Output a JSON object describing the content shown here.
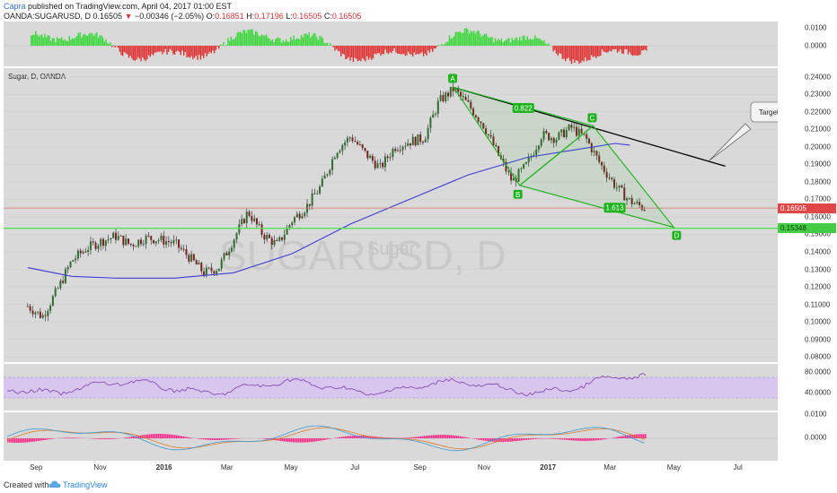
{
  "header": {
    "author": "Capra",
    "published_text": "published on TradingView.com, April 04, 2017 01:00 EST",
    "symbol": "OANDA:SUGARUSD, D",
    "last": "0.16505",
    "change_arrow": "▼",
    "change": "−0.00346 (−2.05%)",
    "open_label": "O:",
    "open": "0.16851",
    "high_label": "H:",
    "high": "0.17196",
    "low_label": "L:",
    "low": "0.16505",
    "close_label": "C:",
    "close": "0.16505"
  },
  "main_panel": {
    "label": "Sugar, D, OANDA",
    "watermark_symbol": "SUGARUSD, D",
    "watermark_name": "Sugar"
  },
  "footer": {
    "created_with": "Created with",
    "brand": "TradingView"
  },
  "colors": {
    "panel_bg": "#d9d9d9",
    "candle_up": "#2f6e2f",
    "candle_down": "#7a2020",
    "ma": "#3c3cd6",
    "pattern": "#19b319",
    "trendline": "#000000",
    "support": "#55e055",
    "rsi": "#7a3fb0",
    "rsi_band": "#d8c6ef",
    "macd_fast": "#3a9bd6",
    "macd_slow": "#e07a2a",
    "macd_hist": "#ff2a8a",
    "osc_pos": "#3ad83a",
    "osc_neg": "#e03030"
  },
  "chart_data": [
    {
      "type": "line",
      "panel": "oscillator",
      "y_ticks": [
        "0.0100",
        "0.0000"
      ],
      "series": []
    },
    {
      "type": "candlestick",
      "panel": "main",
      "x_ticks": [
        "Sep",
        "Nov",
        "2016",
        "Mar",
        "May",
        "Jul",
        "Sep",
        "Nov",
        "2017",
        "Mar",
        "May",
        "Jul"
      ],
      "y_ticks": [
        "0.24000",
        "0.23000",
        "0.22000",
        "0.21000",
        "0.20000",
        "0.19000",
        "0.18000",
        "0.17000",
        "0.16000",
        "0.15000",
        "0.14000",
        "0.13000",
        "0.12000",
        "0.11000",
        "0.10000",
        "0.09000",
        "0.08000"
      ],
      "ylim": [
        0.077,
        0.245
      ],
      "series": [
        {
          "values": [
            [
              "2015-08-24",
              0.109
            ],
            [
              "2015-09-07",
              0.103
            ],
            [
              "2015-09-21",
              0.118
            ],
            [
              "2015-10-05",
              0.135
            ],
            [
              "2015-10-19",
              0.142
            ],
            [
              "2015-11-02",
              0.146
            ],
            [
              "2015-11-16",
              0.149
            ],
            [
              "2015-11-30",
              0.144
            ],
            [
              "2015-12-14",
              0.148
            ],
            [
              "2015-12-28",
              0.147
            ],
            [
              "2016-01-11",
              0.145
            ],
            [
              "2016-01-25",
              0.137
            ],
            [
              "2016-02-08",
              0.128
            ],
            [
              "2016-02-22",
              0.131
            ],
            [
              "2016-03-07",
              0.147
            ],
            [
              "2016-03-21",
              0.163
            ],
            [
              "2016-04-04",
              0.15
            ],
            [
              "2016-04-18",
              0.144
            ],
            [
              "2016-05-02",
              0.158
            ],
            [
              "2016-05-16",
              0.166
            ],
            [
              "2016-05-30",
              0.178
            ],
            [
              "2016-06-13",
              0.198
            ],
            [
              "2016-06-27",
              0.206
            ],
            [
              "2016-07-11",
              0.196
            ],
            [
              "2016-07-25",
              0.188
            ],
            [
              "2016-08-08",
              0.2
            ],
            [
              "2016-08-22",
              0.203
            ],
            [
              "2016-09-05",
              0.205
            ],
            [
              "2016-09-19",
              0.226
            ],
            [
              "2016-10-03",
              0.233
            ],
            [
              "2016-10-17",
              0.224
            ],
            [
              "2016-10-31",
              0.213
            ],
            [
              "2016-11-14",
              0.196
            ],
            [
              "2016-11-28",
              0.18
            ],
            [
              "2016-12-12",
              0.19
            ],
            [
              "2016-12-26",
              0.207
            ],
            [
              "2017-01-09",
              0.205
            ],
            [
              "2017-01-23",
              0.211
            ],
            [
              "2017-02-06",
              0.205
            ],
            [
              "2017-02-20",
              0.19
            ],
            [
              "2017-03-06",
              0.178
            ],
            [
              "2017-03-20",
              0.169
            ],
            [
              "2017-04-03",
              0.165
            ]
          ]
        },
        {
          "values": [
            [
              "2015-08-24",
              0.131
            ],
            [
              "2015-10-05",
              0.126
            ],
            [
              "2015-11-16",
              0.125
            ],
            [
              "2016-01-11",
              0.125
            ],
            [
              "2016-03-07",
              0.128
            ],
            [
              "2016-05-02",
              0.139
            ],
            [
              "2016-06-27",
              0.156
            ],
            [
              "2016-08-22",
              0.17
            ],
            [
              "2016-10-17",
              0.184
            ],
            [
              "2016-12-12",
              0.194
            ],
            [
              "2017-01-23",
              0.198
            ],
            [
              "2017-03-06",
              0.202
            ],
            [
              "2017-03-20",
              0.201
            ]
          ]
        }
      ],
      "trendline": [
        [
          "2016-10-03",
          0.234
        ],
        [
          "2017-06-19",
          0.189
        ]
      ],
      "support_level": 0.15348,
      "last_price": 0.16505,
      "pattern": {
        "points": [
          {
            "label": "A",
            "date": "2016-10-03",
            "value": 0.234
          },
          {
            "label": "B",
            "date": "2016-12-05",
            "value": 0.178
          },
          {
            "label": "C",
            "date": "2017-02-13",
            "value": 0.212
          },
          {
            "label": "D",
            "date": "2017-05-01",
            "value": 0.154
          }
        ],
        "ratios": [
          "0.822",
          "1.613"
        ]
      },
      "annotations": [
        "Target"
      ]
    },
    {
      "type": "line",
      "panel": "rsi",
      "y_ticks": [
        "80.0000",
        "40.0000"
      ],
      "band": [
        40,
        70
      ],
      "series": []
    },
    {
      "type": "line",
      "panel": "macd",
      "y_ticks": [
        "0.0100",
        "0.0000"
      ],
      "series": []
    }
  ]
}
